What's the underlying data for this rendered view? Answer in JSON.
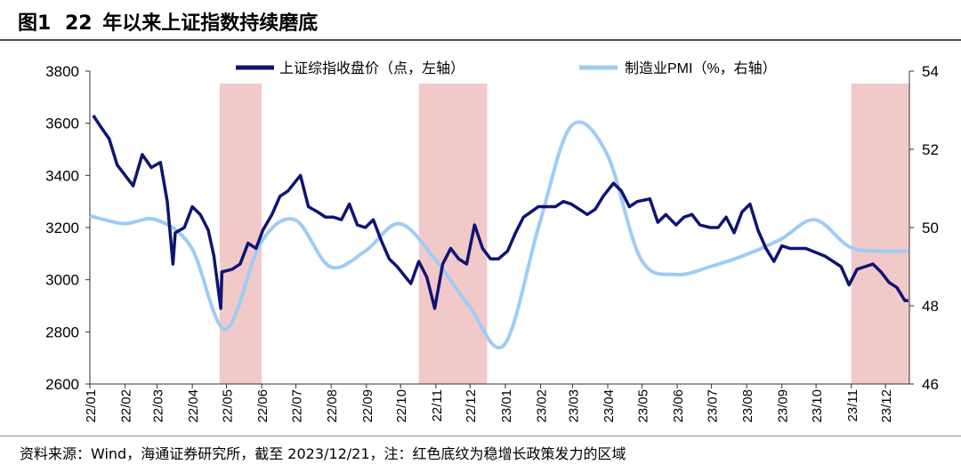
{
  "header": {
    "fig_label": "图1",
    "fig_num": "22",
    "title_text": "年以来上证指数持续磨底"
  },
  "footer": {
    "source": "资料来源：Wind，海通证券研究所，截至 2023/12/21，注：红色底纹为稳增长政策发力的区域"
  },
  "chart_data": {
    "type": "line",
    "series": [
      {
        "name": "上证综指收盘价（点，左轴）",
        "axis": "left",
        "color": "#0f1472",
        "x": [
          "2022-01-04",
          "2022-01-10",
          "2022-01-18",
          "2022-01-25",
          "2022-02-08",
          "2022-02-16",
          "2022-02-24",
          "2022-03-04",
          "2022-03-10",
          "2022-03-15",
          "2022-03-17",
          "2022-03-25",
          "2022-04-01",
          "2022-04-08",
          "2022-04-15",
          "2022-04-20",
          "2022-04-26",
          "2022-04-27",
          "2022-05-06",
          "2022-05-13",
          "2022-05-20",
          "2022-05-27",
          "2022-06-02",
          "2022-06-10",
          "2022-06-17",
          "2022-06-24",
          "2022-07-05",
          "2022-07-12",
          "2022-07-20",
          "2022-07-27",
          "2022-08-03",
          "2022-08-10",
          "2022-08-17",
          "2022-08-24",
          "2022-08-31",
          "2022-09-07",
          "2022-09-14",
          "2022-09-21",
          "2022-09-28",
          "2022-10-10",
          "2022-10-17",
          "2022-10-24",
          "2022-10-31",
          "2022-11-07",
          "2022-11-14",
          "2022-11-21",
          "2022-11-28",
          "2022-12-05",
          "2022-12-12",
          "2022-12-19",
          "2022-12-26",
          "2023-01-03",
          "2023-01-10",
          "2023-01-17",
          "2023-01-30",
          "2023-02-07",
          "2023-02-14",
          "2023-02-21",
          "2023-02-28",
          "2023-03-07",
          "2023-03-14",
          "2023-03-21",
          "2023-03-28",
          "2023-04-06",
          "2023-04-13",
          "2023-04-20",
          "2023-04-27",
          "2023-05-08",
          "2023-05-15",
          "2023-05-22",
          "2023-05-31",
          "2023-06-07",
          "2023-06-14",
          "2023-06-21",
          "2023-06-30",
          "2023-07-07",
          "2023-07-14",
          "2023-07-21",
          "2023-07-28",
          "2023-08-04",
          "2023-08-11",
          "2023-08-18",
          "2023-08-25",
          "2023-09-01",
          "2023-09-08",
          "2023-09-15",
          "2023-09-22",
          "2023-10-09",
          "2023-10-16",
          "2023-10-23",
          "2023-10-30",
          "2023-11-06",
          "2023-11-13",
          "2023-11-20",
          "2023-11-27",
          "2023-12-04",
          "2023-12-11",
          "2023-12-18",
          "2023-12-21"
        ],
        "values": [
          3630,
          3590,
          3540,
          3440,
          3360,
          3480,
          3430,
          3450,
          3300,
          3060,
          3180,
          3200,
          3280,
          3250,
          3190,
          3090,
          2890,
          3030,
          3040,
          3060,
          3140,
          3120,
          3190,
          3250,
          3320,
          3340,
          3400,
          3280,
          3260,
          3240,
          3240,
          3230,
          3290,
          3210,
          3200,
          3230,
          3150,
          3080,
          3050,
          2985,
          3070,
          3010,
          2890,
          3060,
          3120,
          3080,
          3060,
          3210,
          3120,
          3080,
          3080,
          3110,
          3180,
          3240,
          3280,
          3280,
          3280,
          3300,
          3290,
          3270,
          3250,
          3270,
          3320,
          3370,
          3340,
          3280,
          3300,
          3310,
          3220,
          3250,
          3210,
          3240,
          3250,
          3210,
          3200,
          3200,
          3240,
          3180,
          3260,
          3290,
          3190,
          3120,
          3070,
          3130,
          3120,
          3120,
          3120,
          3090,
          3070,
          3050,
          2980,
          3040,
          3050,
          3060,
          3030,
          2990,
          2970,
          2920,
          2920
        ]
      },
      {
        "name": "制造业PMI（%，右轴）",
        "axis": "right",
        "color": "#9fccf5",
        "x": [
          "2022-01-01",
          "2022-01-31",
          "2022-02-28",
          "2022-03-31",
          "2022-04-30",
          "2022-05-31",
          "2022-06-30",
          "2022-07-31",
          "2022-08-31",
          "2022-09-30",
          "2022-10-31",
          "2022-11-30",
          "2022-12-31",
          "2023-01-31",
          "2023-02-28",
          "2023-03-31",
          "2023-04-30",
          "2023-05-31",
          "2023-06-30",
          "2023-07-31",
          "2023-08-31",
          "2023-09-30",
          "2023-10-31",
          "2023-11-30",
          "2023-12-21"
        ],
        "values": [
          50.3,
          50.1,
          50.2,
          49.5,
          47.4,
          49.6,
          50.2,
          49.0,
          49.4,
          50.1,
          49.2,
          48.0,
          47.0,
          50.1,
          52.6,
          51.9,
          49.2,
          48.8,
          49.0,
          49.3,
          49.7,
          50.2,
          49.5,
          49.4,
          49.4
        ]
      }
    ],
    "shaded_periods": [
      {
        "start": "2022-04-25",
        "end": "2022-06-01",
        "color": "#f2c9c9"
      },
      {
        "start": "2022-10-17",
        "end": "2022-12-16",
        "color": "#f2c9c9"
      },
      {
        "start": "2023-11-01",
        "end": "2023-12-22",
        "color": "#f2c9c9"
      }
    ],
    "x_tick_labels": [
      "22/01",
      "22/02",
      "22/03",
      "22/04",
      "22/05",
      "22/06",
      "22/07",
      "22/08",
      "22/09",
      "22/10",
      "22/11",
      "22/12",
      "23/01",
      "23/02",
      "23/03",
      "23/04",
      "23/05",
      "23/06",
      "23/07",
      "23/08",
      "23/09",
      "23/10",
      "23/11",
      "23/12"
    ],
    "y_left": {
      "min": 2600,
      "max": 3800,
      "ticks": [
        "2600",
        "2800",
        "3000",
        "3200",
        "3400",
        "3600",
        "3800"
      ]
    },
    "y_right": {
      "min": 46,
      "max": 54,
      "ticks": [
        "46",
        "48",
        "50",
        "52",
        "54"
      ]
    },
    "grid": false,
    "legend_position": "top"
  }
}
